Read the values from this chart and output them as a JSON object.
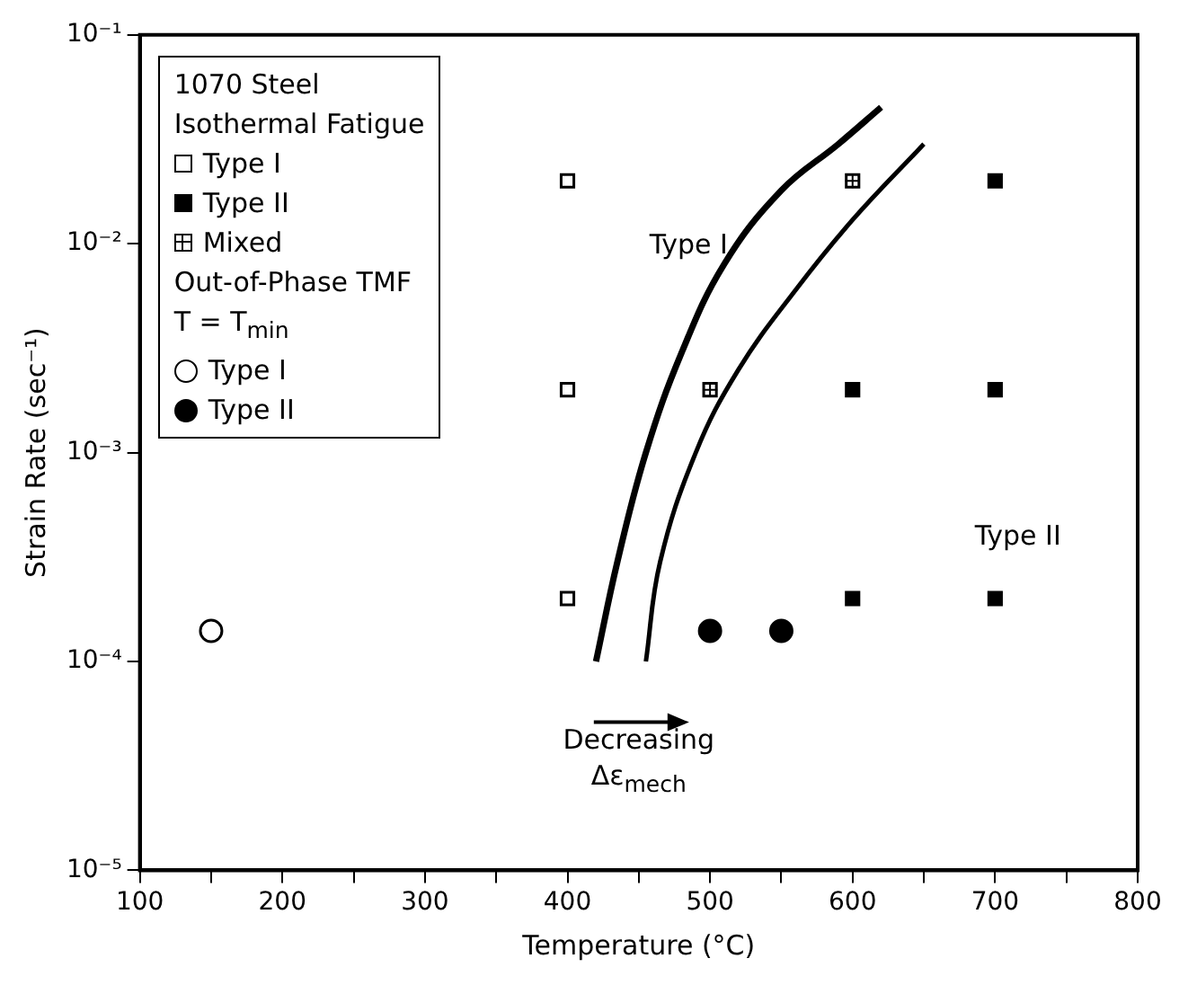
{
  "chart_data": {
    "type": "scatter",
    "xlabel": "Temperature (°C)",
    "ylabel": "Strain Rate (sec⁻¹)",
    "legend_title": "1070 Steel",
    "xlim": [
      100,
      800
    ],
    "xticks": [
      100,
      {
        "value": 150,
        "label": null
      },
      200,
      {
        "value": 250,
        "label": null
      },
      300,
      {
        "value": 350,
        "label": null
      },
      400,
      {
        "value": 450,
        "label": null
      },
      500,
      {
        "value": 550,
        "label": null
      },
      600,
      {
        "value": 650,
        "label": null
      },
      700,
      {
        "value": 750,
        "label": null
      },
      800
    ],
    "ylim": [
      1e-05,
      0.1
    ],
    "yticks": [
      {
        "value": 1e-05,
        "label": "10⁻⁵"
      },
      {
        "value": 0.0001,
        "label": "10⁻⁴"
      },
      {
        "value": 0.001,
        "label": "10⁻³"
      },
      {
        "value": 0.01,
        "label": "10⁻²"
      },
      {
        "value": 0.1,
        "label": "10⁻¹"
      }
    ],
    "log": "y",
    "grid": false,
    "legend": "top left",
    "series": [
      {
        "name": "Type I",
        "type": "scatter",
        "marker": "square",
        "color": "#000000",
        "x": [
          400,
          400,
          400
        ],
        "values": [
          0.02,
          0.002,
          0.0002
        ]
      },
      {
        "name": "Type II",
        "type": "scatter",
        "marker": "square",
        "color": "#000000",
        "x": [
          700,
          600,
          700,
          600,
          700
        ],
        "values": [
          0.02,
          0.002,
          0.002,
          0.0002,
          0.0002
        ]
      },
      {
        "name": "Mixed",
        "type": "scatter",
        "marker": "square",
        "color": "#000000",
        "x": [
          600,
          500
        ],
        "values": [
          0.02,
          0.002
        ]
      },
      {
        "name": "Type I",
        "type": "scatter",
        "marker": "circle",
        "color": "#000000",
        "x": [
          150
        ],
        "values": [
          0.00014
        ]
      },
      {
        "name": "Type II",
        "type": "scatter",
        "marker": "circle",
        "color": "#000000",
        "x": [
          500,
          550
        ],
        "values": [
          0.00014,
          0.00014
        ]
      },
      {
        "type": "line",
        "marker": "none",
        "color": "#000000",
        "x": [
          420,
          435,
          455,
          480,
          510,
          550,
          590,
          620
        ],
        "values": [
          0.0001,
          0.0003,
          0.001,
          0.003,
          0.008,
          0.018,
          0.03,
          0.045
        ]
      },
      {
        "type": "line",
        "marker": "none",
        "color": "#000000",
        "x": [
          455,
          465,
          490,
          520,
          560,
          600,
          650
        ],
        "values": [
          0.0001,
          0.0003,
          0.001,
          0.0025,
          0.006,
          0.013,
          0.03
        ]
      }
    ],
    "annotations": [
      "Isothermal Fatigue",
      "Out-of-Phase TMF",
      "T = T$_{min}$",
      "Type I",
      "Type II",
      "Decreasing Δε$_{mech}$"
    ]
  }
}
